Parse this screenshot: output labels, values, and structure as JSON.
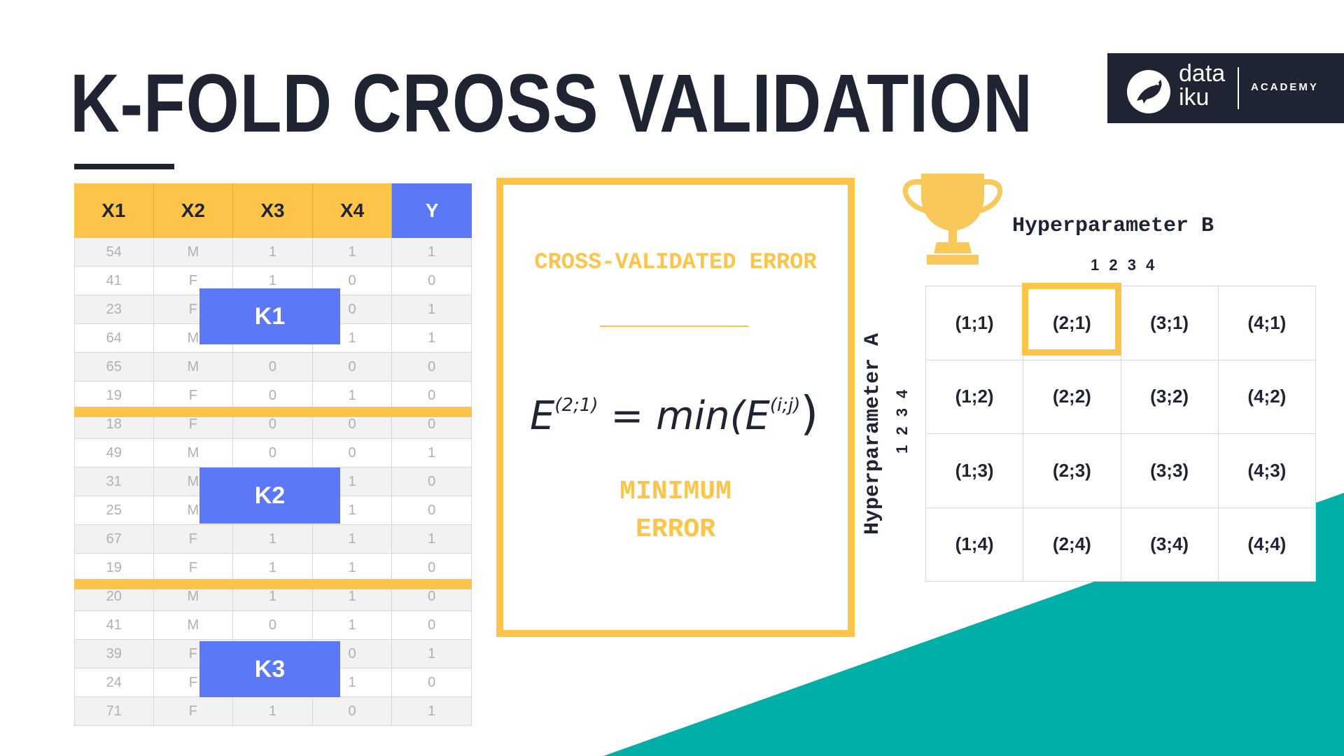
{
  "title": "K-FOLD CROSS VALIDATION",
  "logo": {
    "line1": "data",
    "line2": "iku",
    "academy": "ACADEMY",
    "icon": "bird-icon"
  },
  "table": {
    "headers": [
      "X1",
      "X2",
      "X3",
      "X4",
      "Y"
    ],
    "rows": [
      [
        "54",
        "M",
        "1",
        "1",
        "1"
      ],
      [
        "41",
        "F",
        "1",
        "0",
        "0"
      ],
      [
        "23",
        "F",
        "",
        "0",
        "1"
      ],
      [
        "64",
        "M",
        "",
        "1",
        "1"
      ],
      [
        "65",
        "M",
        "0",
        "0",
        "0"
      ],
      [
        "19",
        "F",
        "0",
        "1",
        "0"
      ],
      [
        "18",
        "F",
        "0",
        "0",
        "0"
      ],
      [
        "49",
        "M",
        "0",
        "0",
        "1"
      ],
      [
        "31",
        "M",
        "",
        "1",
        "0"
      ],
      [
        "25",
        "M",
        "",
        "1",
        "0"
      ],
      [
        "67",
        "F",
        "1",
        "1",
        "1"
      ],
      [
        "19",
        "F",
        "1",
        "1",
        "0"
      ],
      [
        "20",
        "M",
        "1",
        "1",
        "0"
      ],
      [
        "41",
        "M",
        "0",
        "1",
        "0"
      ],
      [
        "39",
        "F",
        "",
        "0",
        "1"
      ],
      [
        "24",
        "F",
        "",
        "1",
        "0"
      ],
      [
        "71",
        "F",
        "1",
        "0",
        "1"
      ]
    ],
    "folds": [
      "K1",
      "K2",
      "K3"
    ]
  },
  "panel": {
    "heading": "CROSS-VALIDATED ERROR",
    "formula": {
      "lhs": "E",
      "lhs_sup": "(2;1)",
      "eq": "= min(",
      "inner": "E",
      "inner_sup": "(i;j)",
      "close": ")"
    },
    "min_line1": "MINIMUM",
    "min_line2": "ERROR"
  },
  "hyper": {
    "b_label": "Hyperparameter B",
    "b_ticks": "1 2 3 4",
    "a_label": "Hyperparameter A",
    "a_ticks": "1 2 3 4",
    "cells": [
      "(1;1)",
      "(2;1)",
      "(3;1)",
      "(4;1)",
      "(1;2)",
      "(2;2)",
      "(3;2)",
      "(4;2)",
      "(1;3)",
      "(2;3)",
      "(3;3)",
      "(4;3)",
      "(1;4)",
      "(2;4)",
      "(3;4)",
      "(4;4)"
    ],
    "selected": "(2;1)"
  },
  "colors": {
    "navy": "#1f2433",
    "yellow": "#fcc54a",
    "blue": "#5b78f6",
    "teal": "#00b0a8"
  }
}
